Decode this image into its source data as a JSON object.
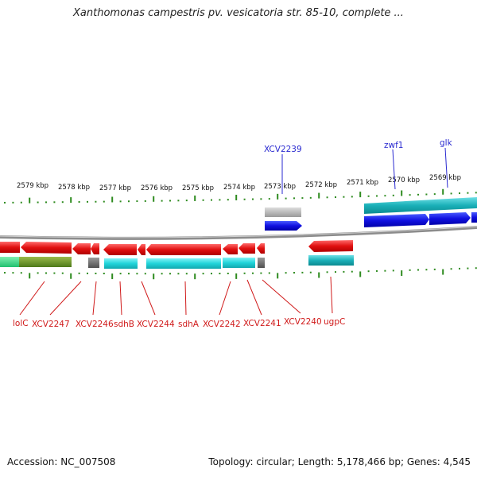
{
  "title": "Xanthomonas campestris pv. vesicatoria str. 85-10, complete ...",
  "footer": {
    "accession": "Accession: NC_007508",
    "summary": "Topology: circular; Length: 5,178,466 bp; Genes: 4,545"
  },
  "colors": {
    "forward_gene": "#1a2ee6",
    "forward_cds": "#18b6c0",
    "reverse_gene": "#e21a1a",
    "reverse_cds": "#22d6dc",
    "rna_gene": "#a9a9a9",
    "tick": "#2e8b1f",
    "backbone": "#8c8c8c",
    "top_label": "#2a2ad0",
    "bottom_label": "#d01a1a"
  },
  "scale": {
    "unit": "kbp",
    "ticks": [
      {
        "label": "2579 kbp"
      },
      {
        "label": "2578 kbp"
      },
      {
        "label": "2577 kbp"
      },
      {
        "label": "2576 kbp"
      },
      {
        "label": "2575 kbp"
      },
      {
        "label": "2574 kbp"
      },
      {
        "label": "2573 kbp"
      },
      {
        "label": "2572 kbp"
      },
      {
        "label": "2571 kbp"
      },
      {
        "label": "2570 kbp"
      },
      {
        "label": "2569 kbp"
      }
    ]
  },
  "top_genes": [
    {
      "label": "XCV2239"
    },
    {
      "label": "zwf1"
    },
    {
      "label": "glk"
    }
  ],
  "bottom_genes": [
    {
      "label": "lolC"
    },
    {
      "label": "XCV2247"
    },
    {
      "label": "XCV2246"
    },
    {
      "label": "sdhB"
    },
    {
      "label": "XCV2244"
    },
    {
      "label": "sdhA"
    },
    {
      "label": "XCV2242"
    },
    {
      "label": "XCV2241"
    },
    {
      "label": "XCV2240"
    },
    {
      "label": "ugpC"
    }
  ]
}
